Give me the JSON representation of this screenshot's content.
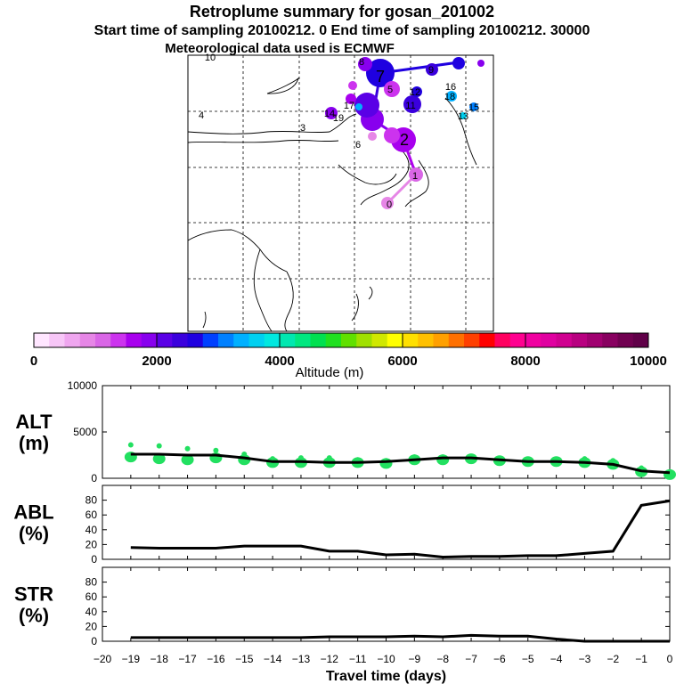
{
  "header": {
    "title": "Retroplume summary for gosan_201002",
    "sampling": "Start time of sampling 20100212.     0     End time of sampling 20100212. 30000",
    "met": "Meteorological data used is ECMWF"
  },
  "map": {
    "labels": [
      "10",
      "7",
      "8",
      "9",
      "5",
      "4",
      "3",
      "6",
      "1",
      "2",
      "0",
      "15",
      "18",
      "13",
      "14",
      "16",
      "17",
      "12",
      "11",
      "19"
    ]
  },
  "colorbar": {
    "label": "Altitude (m)",
    "ticks": [
      "0",
      "2000",
      "4000",
      "6000",
      "8000",
      "10000"
    ],
    "colors": [
      "#ffe6ff",
      "#f7c6f7",
      "#efa6ef",
      "#e686e6",
      "#d966e6",
      "#cc33ee",
      "#a800ee",
      "#8800ee",
      "#5a00e6",
      "#3a00dd",
      "#1f00e0",
      "#0040ff",
      "#0080ff",
      "#00b0ff",
      "#00d0f0",
      "#00e8e0",
      "#00e8b0",
      "#00e880",
      "#00e050",
      "#20e020",
      "#60e000",
      "#a0e000",
      "#d0e800",
      "#ffff00",
      "#ffe000",
      "#ffc000",
      "#ffa000",
      "#ff7000",
      "#ff4000",
      "#ff0000",
      "#ff0060",
      "#ff0090",
      "#f000a0",
      "#e000a0",
      "#d00090",
      "#b80080",
      "#a00070",
      "#880060",
      "#700050",
      "#600048"
    ]
  },
  "chart_data": [
    {
      "type": "line",
      "name": "ALT",
      "ylabel": "ALT\n(m)",
      "ylabel_lines": [
        "ALT",
        "(m)"
      ],
      "ylim": [
        0,
        10000
      ],
      "yticks": [
        "0",
        "5000",
        "10000"
      ],
      "x": [
        -19,
        -18,
        -17,
        -16,
        -15,
        -14,
        -13,
        -12,
        -11,
        -10,
        -9,
        -8,
        -7,
        -6,
        -5,
        -4,
        -3,
        -2,
        -1,
        0
      ],
      "values": [
        2600,
        2600,
        2500,
        2500,
        2200,
        1800,
        1800,
        1700,
        1700,
        1800,
        2000,
        2200,
        2200,
        2000,
        1800,
        1800,
        1700,
        1500,
        800,
        600
      ],
      "blob_values": [
        2300,
        2100,
        2000,
        2200,
        2000,
        1700,
        1700,
        1700,
        1700,
        1600,
        2000,
        2000,
        2100,
        1900,
        1800,
        1800,
        1700,
        1500,
        700,
        400
      ],
      "blob_top": [
        3600,
        3500,
        3200,
        3000,
        2600,
        2100,
        2200,
        2200,
        2000,
        1900,
        2300,
        2300,
        2300,
        2100,
        2000,
        2000,
        2100,
        1900,
        1100,
        700
      ]
    },
    {
      "type": "line",
      "name": "ABL",
      "ylabel_lines": [
        "ABL",
        "(%)"
      ],
      "ylim": [
        0,
        100
      ],
      "yticks": [
        "0",
        "20",
        "40",
        "60",
        "80"
      ],
      "x": [
        -19,
        -18,
        -17,
        -16,
        -15,
        -14,
        -13,
        -12,
        -11,
        -10,
        -9,
        -8,
        -7,
        -6,
        -5,
        -4,
        -3,
        -2,
        -1,
        0
      ],
      "values": [
        16,
        15,
        15,
        15,
        18,
        18,
        18,
        11,
        11,
        6,
        7,
        3,
        4,
        4,
        5,
        5,
        8,
        11,
        73,
        79
      ]
    },
    {
      "type": "line",
      "name": "STR",
      "ylabel_lines": [
        "STR",
        "(%)"
      ],
      "ylim": [
        0,
        100
      ],
      "yticks": [
        "0",
        "20",
        "40",
        "60",
        "80"
      ],
      "x": [
        -19,
        -18,
        -17,
        -16,
        -15,
        -14,
        -13,
        -12,
        -11,
        -10,
        -9,
        -8,
        -7,
        -6,
        -5,
        -4,
        -3,
        -2,
        -1,
        0
      ],
      "values": [
        5,
        5,
        5,
        5,
        5,
        5,
        5,
        6,
        6,
        6,
        7,
        6,
        8,
        7,
        7,
        3,
        0,
        0,
        0,
        0
      ]
    }
  ],
  "xaxis": {
    "label": "Travel time (days)",
    "ticks": [
      "−20",
      "−19",
      "−18",
      "−17",
      "−16",
      "−15",
      "−14",
      "−13",
      "−12",
      "−11",
      "−10",
      "−9",
      "−8",
      "−7",
      "−6",
      "−5",
      "−4",
      "−3",
      "−2",
      "−1",
      "0"
    ]
  }
}
